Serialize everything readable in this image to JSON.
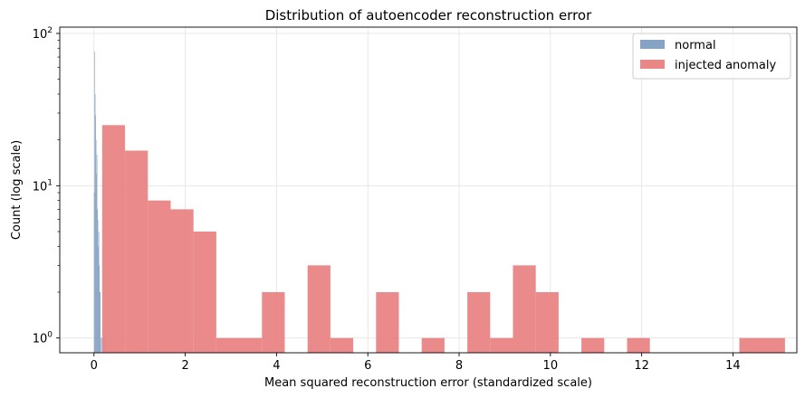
{
  "chart_data": {
    "type": "bar",
    "title": "Distribution of autoencoder reconstruction error",
    "xlabel": "Mean squared reconstruction error (standardized scale)",
    "ylabel": "Count (log scale)",
    "y_scale": "log",
    "xlim": [
      -0.75,
      15.4
    ],
    "ylim": [
      0.8,
      110
    ],
    "x_ticks": [
      0,
      2,
      4,
      6,
      8,
      10,
      12,
      14
    ],
    "y_ticks": [
      {
        "value": 1,
        "base": "10",
        "exp": "0"
      },
      {
        "value": 10,
        "base": "10",
        "exp": "1"
      },
      {
        "value": 100,
        "base": "10",
        "exp": "2"
      }
    ],
    "grid": true,
    "legend_position": "top-right",
    "series": [
      {
        "name": "normal",
        "color": "#7f9ec1",
        "bins": [
          {
            "x0": 0.0,
            "x1": 0.01,
            "count": 9
          },
          {
            "x0": 0.01,
            "x1": 0.02,
            "count": 76
          },
          {
            "x0": 0.02,
            "x1": 0.03,
            "count": 40
          },
          {
            "x0": 0.03,
            "x1": 0.04,
            "count": 29
          },
          {
            "x0": 0.04,
            "x1": 0.05,
            "count": 20
          },
          {
            "x0": 0.05,
            "x1": 0.06,
            "count": 12
          },
          {
            "x0": 0.06,
            "x1": 0.07,
            "count": 16
          },
          {
            "x0": 0.07,
            "x1": 0.08,
            "count": 7
          },
          {
            "x0": 0.08,
            "x1": 0.09,
            "count": 6
          },
          {
            "x0": 0.09,
            "x1": 0.1,
            "count": 4
          },
          {
            "x0": 0.1,
            "x1": 0.11,
            "count": 5
          },
          {
            "x0": 0.11,
            "x1": 0.12,
            "count": 3
          },
          {
            "x0": 0.12,
            "x1": 0.13,
            "count": 2
          },
          {
            "x0": 0.13,
            "x1": 0.14,
            "count": 2
          },
          {
            "x0": 0.15,
            "x1": 0.16,
            "count": 1
          },
          {
            "x0": 0.17,
            "x1": 0.18,
            "count": 1
          },
          {
            "x0": 0.21,
            "x1": 0.22,
            "count": 1
          },
          {
            "x0": 0.25,
            "x1": 0.26,
            "count": 1
          }
        ]
      },
      {
        "name": "injected anomaly",
        "color": "#e88080",
        "bins": [
          {
            "x0": 0.18,
            "x1": 0.68,
            "count": 25
          },
          {
            "x0": 0.68,
            "x1": 1.18,
            "count": 17
          },
          {
            "x0": 1.18,
            "x1": 1.68,
            "count": 8
          },
          {
            "x0": 1.68,
            "x1": 2.18,
            "count": 7
          },
          {
            "x0": 2.18,
            "x1": 2.68,
            "count": 5
          },
          {
            "x0": 2.68,
            "x1": 3.68,
            "count": 1
          },
          {
            "x0": 3.68,
            "x1": 4.18,
            "count": 2
          },
          {
            "x0": 4.18,
            "x1": 4.68,
            "count": 0
          },
          {
            "x0": 4.68,
            "x1": 5.18,
            "count": 3
          },
          {
            "x0": 5.18,
            "x1": 5.68,
            "count": 1
          },
          {
            "x0": 6.18,
            "x1": 6.68,
            "count": 2
          },
          {
            "x0": 7.18,
            "x1": 7.68,
            "count": 1
          },
          {
            "x0": 8.18,
            "x1": 8.68,
            "count": 2
          },
          {
            "x0": 8.68,
            "x1": 9.18,
            "count": 1
          },
          {
            "x0": 9.18,
            "x1": 9.68,
            "count": 3
          },
          {
            "x0": 9.68,
            "x1": 10.18,
            "count": 2
          },
          {
            "x0": 10.68,
            "x1": 11.18,
            "count": 1
          },
          {
            "x0": 11.68,
            "x1": 12.18,
            "count": 1
          },
          {
            "x0": 14.14,
            "x1": 15.14,
            "count": 1
          }
        ]
      }
    ]
  }
}
